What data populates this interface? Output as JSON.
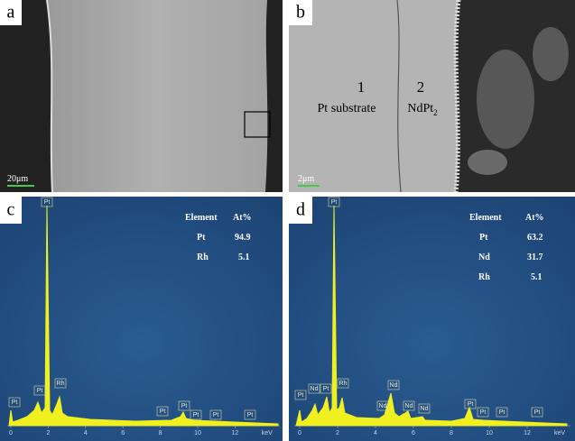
{
  "panels": [
    {
      "label": "a",
      "scale_bar": "20μm"
    },
    {
      "label": "b",
      "scale_bar": "2μm",
      "annotations": [
        {
          "number": "1",
          "text": "Pt substrate"
        },
        {
          "number": "2",
          "text": "NdPt",
          "subscript": "2"
        }
      ]
    },
    {
      "label": "c",
      "table": {
        "header": [
          "Element",
          "At%"
        ],
        "rows": [
          [
            "Pt",
            94.9
          ],
          [
            "Rh",
            5.1
          ]
        ]
      },
      "peak_labels": [
        "Pt",
        "Pt",
        "Pt",
        "Rh",
        "Pt",
        "Pt",
        "Pt",
        "Pt",
        "Pt"
      ],
      "x_axis": {
        "ticks": [
          0,
          2,
          4,
          6,
          8,
          10,
          12
        ],
        "unit": "keV"
      }
    },
    {
      "label": "d",
      "table": {
        "header": [
          "Element",
          "At%"
        ],
        "rows": [
          [
            "Pt",
            63.2
          ],
          [
            "Nd",
            31.7
          ],
          [
            "Rh",
            5.1
          ]
        ]
      },
      "peak_labels": [
        "Pt",
        "Nd",
        "Pt",
        "Pt",
        "Rh",
        "Nd",
        "Nd",
        "Nd",
        "Nd",
        "Pt",
        "Pt",
        "Pt",
        "Pt"
      ],
      "x_axis": {
        "ticks": [
          0,
          2,
          4,
          6,
          8,
          10,
          12
        ],
        "unit": "keV"
      }
    }
  ]
}
